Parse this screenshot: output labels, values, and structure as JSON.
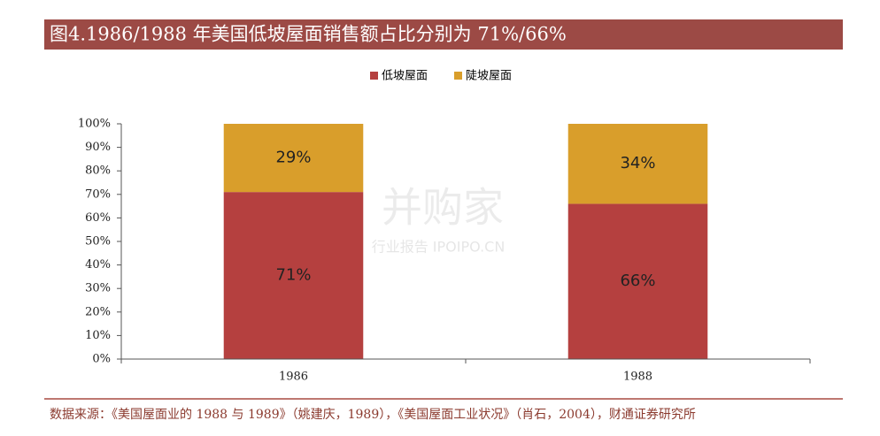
{
  "chart_data": {
    "type": "stacked-bar",
    "title": "图4.1986/1988 年美国低坡屋面销售额占比分别为 71%/66%",
    "categories": [
      "1986",
      "1988"
    ],
    "series": [
      {
        "name": "低坡屋面",
        "color": "#b5403f",
        "values": [
          71,
          66
        ],
        "value_labels": [
          "71%",
          "66%"
        ]
      },
      {
        "name": "陡坡屋面",
        "color": "#d99e2b",
        "values": [
          29,
          34
        ],
        "value_labels": [
          "29%",
          "34%"
        ]
      }
    ],
    "ylim": [
      0,
      100
    ],
    "yticks": [
      {
        "value": 0,
        "label": "0%"
      },
      {
        "value": 10,
        "label": "10%"
      },
      {
        "value": 20,
        "label": "20%"
      },
      {
        "value": 30,
        "label": "30%"
      },
      {
        "value": 40,
        "label": "40%"
      },
      {
        "value": 50,
        "label": "50%"
      },
      {
        "value": 60,
        "label": "60%"
      },
      {
        "value": 70,
        "label": "70%"
      },
      {
        "value": 80,
        "label": "80%"
      },
      {
        "value": 90,
        "label": "90%"
      },
      {
        "value": 100,
        "label": "100%"
      }
    ],
    "legend": "top",
    "watermark": [
      "并购家",
      "行业报告 IPOIPO.CN"
    ],
    "source": "数据来源：《美国屋面业的 1988 与 1989》（姚建庆，1989），《美国屋面工业状况》（肖石，2004），财通证券研究所"
  }
}
